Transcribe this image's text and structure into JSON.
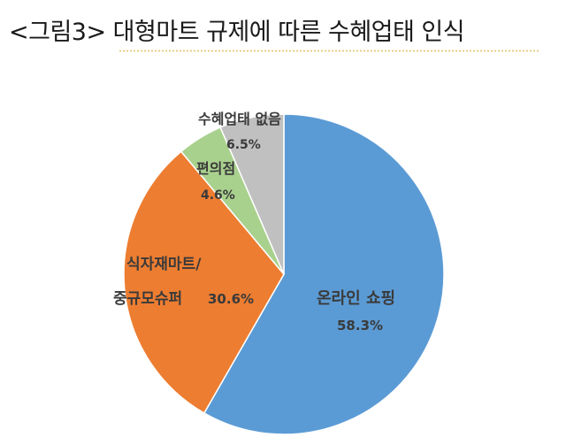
{
  "chart_data": {
    "type": "pie",
    "title": "<그림3> 대형마트 규제에 따른 수혜업태 인식",
    "start_angle_deg": 0,
    "direction": "clockwise",
    "legend": "none",
    "slices": [
      {
        "label": "온라인 쇼핑",
        "value": 58.3,
        "value_label": "58.3%",
        "color": "#5b9bd5"
      },
      {
        "label_lines": [
          "식자재마트/",
          "중규모슈퍼"
        ],
        "value": 30.6,
        "value_label": "30.6%",
        "color": "#ed7d31"
      },
      {
        "label": "편의점",
        "value": 4.6,
        "value_label": "4.6%",
        "color": "#a9d18e"
      },
      {
        "label": "수혜업태 없음",
        "value": 6.5,
        "value_label": "6.5%",
        "color": "#c0c0c0"
      }
    ]
  }
}
